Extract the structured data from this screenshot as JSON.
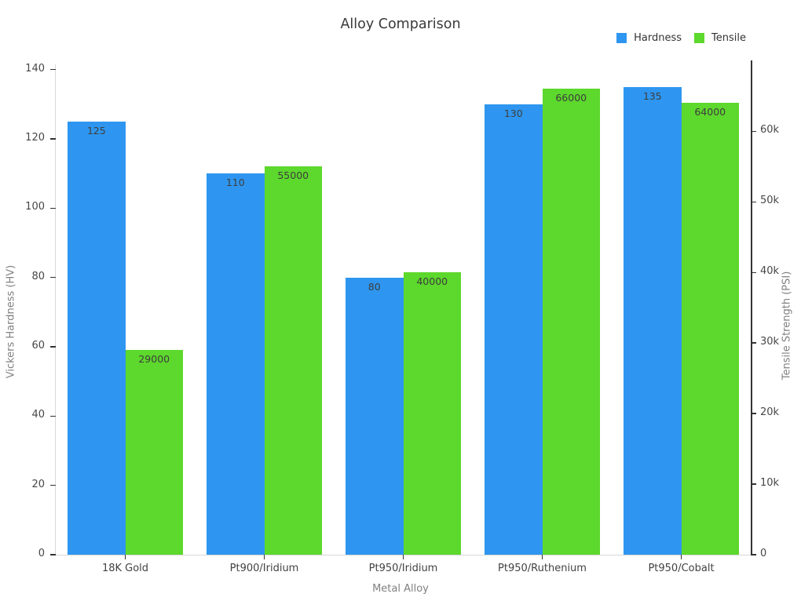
{
  "chart_data": {
    "type": "bar",
    "title": "Alloy Comparison",
    "categories": [
      "18K Gold",
      "Pt900/Iridium",
      "Pt950/Iridium",
      "Pt950/Ruthenium",
      "Pt950/Cobalt"
    ],
    "series": [
      {
        "name": "Hardness",
        "axis": "left",
        "color": "#2E96F0",
        "values": [
          125,
          110,
          80,
          130,
          135
        ],
        "value_labels": [
          "125",
          "110",
          "80",
          "130",
          "135"
        ]
      },
      {
        "name": "Tensile",
        "axis": "right",
        "color": "#5DD82C",
        "values": [
          29000,
          55000,
          40000,
          66000,
          64000
        ],
        "value_labels": [
          "29000",
          "55000",
          "40000",
          "66000",
          "64000"
        ]
      }
    ],
    "xlabel": "Metal Alloy",
    "left_axis": {
      "label": "Vickers Hardness (HV)",
      "ticks": [
        0,
        20,
        40,
        60,
        80,
        100,
        120,
        140
      ],
      "tick_labels": [
        "0",
        "20",
        "40",
        "60",
        "80",
        "100",
        "120",
        "140"
      ],
      "max": 141.5
    },
    "right_axis": {
      "label": "Tensile Strength (PSI)",
      "ticks": [
        0,
        10000,
        20000,
        30000,
        40000,
        50000,
        60000
      ],
      "tick_labels": [
        "0",
        "10k",
        "20k",
        "30k",
        "40k",
        "50k",
        "60k"
      ],
      "max": 69500
    },
    "grid": false,
    "legend_position": "top-right",
    "bar_value_labels_inside_top": true,
    "colors": {
      "hardness_blue": "#2E96F0",
      "tensile_green": "#5DD82C",
      "axis_light": "#d9d9d9",
      "axis_dark": "#333333"
    }
  }
}
